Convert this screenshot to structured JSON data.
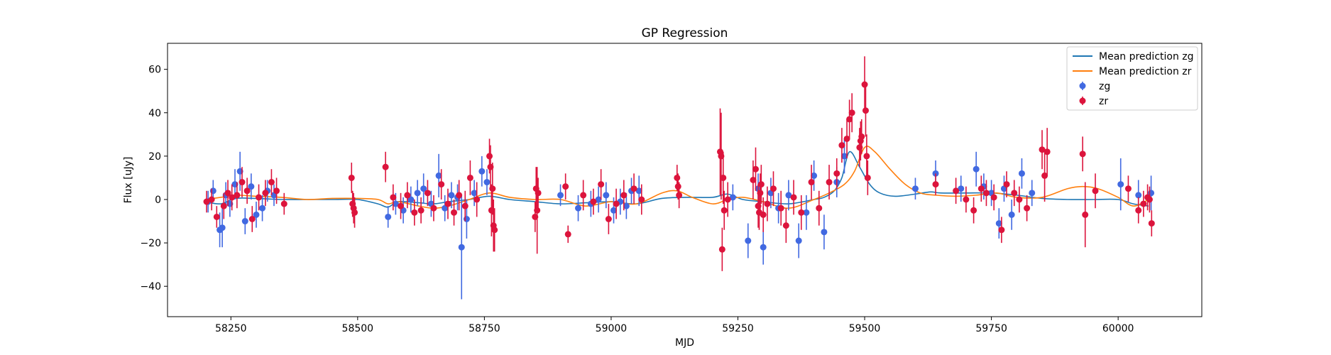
{
  "chart_data": {
    "type": "scatter",
    "title": "GP Regression",
    "xlabel": "MJD",
    "ylabel": "Flux [uJy]",
    "xlim": [
      58125,
      60165
    ],
    "ylim": [
      -54,
      72
    ],
    "xticks": [
      58250,
      58500,
      58750,
      59000,
      59250,
      59500,
      59750,
      60000
    ],
    "yticks": [
      -40,
      -20,
      0,
      20,
      40,
      60
    ],
    "grid": false,
    "legend_position": "top-right",
    "legend": [
      "Mean prediction zg",
      "Mean prediction zr",
      "zg",
      "zr"
    ],
    "series": [
      {
        "name": "Mean prediction zg",
        "kind": "line",
        "color": "#1f77b4",
        "x": [
          58200,
          58230,
          58260,
          58300,
          58350,
          58400,
          58450,
          58500,
          58540,
          58560,
          58580,
          58620,
          58650,
          58680,
          58720,
          58760,
          58800,
          58850,
          58900,
          58950,
          59000,
          59050,
          59100,
          59150,
          59200,
          59230,
          59260,
          59300,
          59350,
          59400,
          59420,
          59440,
          59455,
          59470,
          59490,
          59510,
          59530,
          59560,
          59600,
          59630,
          59650,
          59700,
          59750,
          59800,
          59850,
          59900,
          59950,
          60000,
          60030,
          60060
        ],
        "y": [
          -1,
          -2,
          0.5,
          0.5,
          0,
          0,
          0,
          0,
          -2,
          -3.5,
          -1,
          -1.5,
          -2,
          -1,
          0,
          1.5,
          0,
          -1,
          -2,
          -1.5,
          -1,
          -2,
          0.5,
          1,
          1,
          2.5,
          0,
          -1,
          -2,
          0,
          1,
          4,
          10,
          22,
          15,
          7,
          3,
          1.5,
          2.5,
          3.5,
          3,
          3,
          3,
          2,
          0.5,
          0,
          0,
          0,
          -2,
          -3
        ]
      },
      {
        "name": "Mean prediction zr",
        "kind": "line",
        "color": "#ff7f0e",
        "x": [
          58200,
          58230,
          58260,
          58300,
          58350,
          58400,
          58450,
          58500,
          58540,
          58560,
          58580,
          58620,
          58650,
          58680,
          58720,
          58760,
          58800,
          58850,
          58900,
          58950,
          59000,
          59050,
          59100,
          59130,
          59160,
          59200,
          59230,
          59260,
          59300,
          59350,
          59400,
          59430,
          59460,
          59480,
          59500,
          59520,
          59550,
          59580,
          59610,
          59640,
          59680,
          59720,
          59760,
          59800,
          59850,
          59900,
          59930,
          59960,
          60000,
          60030,
          60060
        ],
        "y": [
          0,
          1,
          2,
          1.5,
          1,
          0,
          0.5,
          0.5,
          0,
          -2,
          -1,
          -3,
          -4,
          -3,
          0,
          3,
          1,
          0,
          0,
          -3,
          -1,
          -2,
          3,
          4,
          1,
          -2,
          0,
          1,
          -1,
          -4,
          0,
          3,
          7,
          13,
          24,
          22,
          14,
          7,
          3,
          2,
          1.5,
          2,
          3,
          1,
          1,
          5,
          6,
          5,
          1,
          -3,
          0
        ]
      },
      {
        "name": "zg",
        "kind": "errorbar-scatter",
        "color": "#4169e1",
        "x": [
          58205,
          58215,
          58228,
          58233,
          58240,
          58248,
          58258,
          58268,
          58278,
          58290,
          58300,
          58312,
          58322,
          58335,
          58560,
          58575,
          58590,
          58605,
          58618,
          58630,
          58645,
          58660,
          58672,
          58685,
          58697,
          58705,
          58715,
          58730,
          58745,
          58755,
          58900,
          58935,
          58960,
          58975,
          58990,
          59005,
          59018,
          59030,
          59040,
          59055,
          59240,
          59270,
          59290,
          59300,
          59315,
          59330,
          59350,
          59370,
          59385,
          59400,
          59420,
          59445,
          59460,
          59600,
          59640,
          59690,
          59720,
          59735,
          59750,
          59765,
          59775,
          59790,
          59810,
          59830,
          60005,
          60040,
          60065
        ],
        "y": [
          -1,
          4,
          -14,
          -13,
          2,
          -2,
          7,
          13,
          -10,
          6,
          -7,
          -4,
          4,
          2,
          -8,
          -2,
          -5,
          0,
          3,
          5,
          -2,
          11,
          -4,
          2,
          1,
          -22,
          -9,
          3,
          13,
          8,
          2,
          -4,
          -2,
          0,
          2,
          -5,
          -1,
          -3,
          4,
          4,
          1,
          -19,
          5,
          -22,
          3,
          -4,
          2,
          -19,
          -6,
          11,
          -15,
          8,
          20,
          5,
          12,
          5,
          14,
          6,
          3,
          -11,
          5,
          -7,
          12,
          3,
          7,
          2,
          3
        ],
        "err": [
          5,
          5,
          8,
          9,
          6,
          6,
          7,
          9,
          6,
          6,
          6,
          6,
          5,
          5,
          5,
          5,
          6,
          6,
          6,
          7,
          6,
          10,
          6,
          6,
          6,
          24,
          9,
          6,
          7,
          6,
          5,
          6,
          6,
          6,
          6,
          6,
          6,
          6,
          6,
          7,
          6,
          8,
          7,
          8,
          7,
          7,
          7,
          8,
          8,
          7,
          8,
          7,
          8,
          5,
          6,
          6,
          8,
          6,
          6,
          7,
          6,
          7,
          7,
          6,
          12,
          7,
          8
        ]
      },
      {
        "name": "zr",
        "kind": "errorbar-scatter",
        "color": "#dc143c",
        "x": [
          58202,
          58212,
          58222,
          58236,
          58244,
          58252,
          58262,
          58272,
          58282,
          58292,
          58305,
          58318,
          58330,
          58340,
          58355,
          58488,
          58490,
          58492,
          58494,
          58555,
          58570,
          58585,
          58598,
          58612,
          58625,
          58638,
          58650,
          58665,
          58678,
          58690,
          58700,
          58712,
          58722,
          58735,
          58760,
          58762,
          58764,
          58766,
          58768,
          58770,
          58850,
          58852,
          58854,
          58856,
          58910,
          58915,
          58945,
          58965,
          58980,
          58995,
          59010,
          59025,
          59045,
          59060,
          59130,
          59132,
          59134,
          59215,
          59217,
          59219,
          59221,
          59223,
          59230,
          59280,
          59285,
          59290,
          59292,
          59294,
          59296,
          59300,
          59308,
          59320,
          59335,
          59345,
          59360,
          59375,
          59395,
          59410,
          59430,
          59445,
          59455,
          59465,
          59470,
          59475,
          59490,
          59492,
          59494,
          59500,
          59502,
          59504,
          59506,
          59640,
          59680,
          59700,
          59715,
          59730,
          59740,
          59755,
          59770,
          59780,
          59795,
          59805,
          59820,
          59850,
          59855,
          59860,
          59930,
          59935,
          59955,
          60020,
          60040,
          60050,
          60058,
          60062,
          60066
        ],
        "y": [
          -1,
          0,
          -8,
          -3,
          3,
          1,
          2,
          8,
          4,
          -9,
          1,
          3,
          8,
          4,
          -2,
          10,
          -2,
          -4,
          -6,
          15,
          1,
          -3,
          2,
          -6,
          -5,
          3,
          -4,
          7,
          -2,
          -6,
          2,
          -3,
          10,
          0,
          20,
          15,
          -5,
          5,
          -12,
          -14,
          -8,
          5,
          -5,
          3,
          6,
          -16,
          2,
          -1,
          7,
          -9,
          -2,
          2,
          5,
          0,
          10,
          6,
          2,
          22,
          20,
          -23,
          10,
          -5,
          0,
          9,
          14,
          -3,
          -6,
          3,
          7,
          -7,
          -2,
          5,
          -4,
          -12,
          1,
          -6,
          8,
          -4,
          8,
          12,
          25,
          28,
          37,
          40,
          24,
          27,
          29,
          53,
          41,
          20,
          10,
          7,
          4,
          0,
          -5,
          5,
          3,
          1,
          -14,
          7,
          3,
          0,
          -4,
          23,
          11,
          22,
          21,
          -7,
          4,
          5,
          -5,
          -2,
          1,
          0,
          -11
        ],
        "err": [
          5,
          5,
          5,
          6,
          6,
          6,
          6,
          7,
          6,
          6,
          6,
          6,
          6,
          6,
          5,
          7,
          6,
          7,
          7,
          7,
          6,
          6,
          6,
          6,
          6,
          6,
          6,
          7,
          7,
          6,
          7,
          7,
          8,
          8,
          8,
          10,
          12,
          12,
          12,
          10,
          7,
          10,
          20,
          7,
          6,
          4,
          7,
          6,
          7,
          7,
          7,
          7,
          7,
          7,
          6,
          6,
          6,
          20,
          20,
          10,
          12,
          9,
          8,
          9,
          10,
          10,
          8,
          9,
          9,
          8,
          8,
          8,
          8,
          8,
          8,
          8,
          8,
          8,
          8,
          7,
          8,
          9,
          9,
          9,
          9,
          9,
          8,
          13,
          12,
          10,
          8,
          5,
          6,
          6,
          6,
          6,
          6,
          6,
          6,
          6,
          6,
          6,
          6,
          9,
          12,
          11,
          8,
          15,
          8,
          6,
          6,
          6,
          6,
          6,
          6
        ]
      }
    ]
  }
}
